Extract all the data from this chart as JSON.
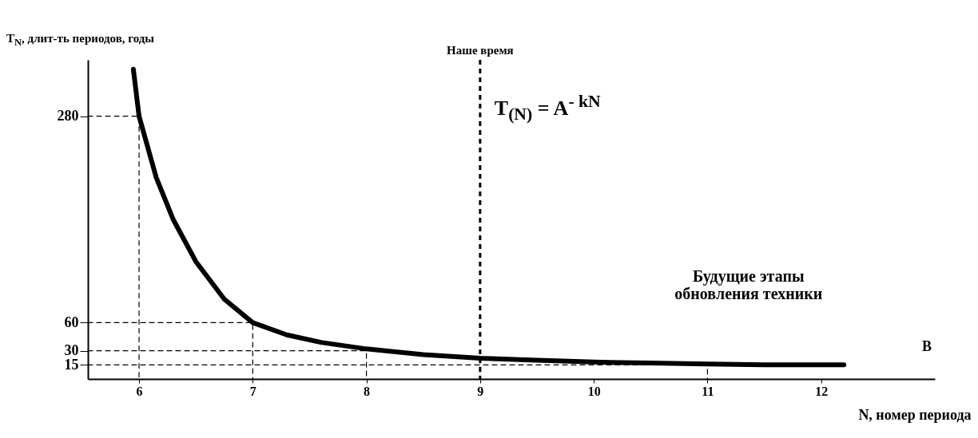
{
  "chart_data": {
    "type": "line",
    "xlabel": "N, номер периода",
    "ylabel": "T$_{N}$, длит-ть периодов, годы",
    "xlim": [
      5.55,
      13
    ],
    "xticks": [
      6,
      7,
      8,
      9,
      10,
      11,
      12
    ],
    "ylim": [
      0,
      340
    ],
    "yticks": [
      15,
      30,
      60,
      280
    ],
    "series": [
      {
        "color": "#000000",
        "line_style": "solid",
        "x": [
          5.95,
          6,
          6.15,
          6.3,
          6.5,
          6.75,
          7,
          7.3,
          7.6,
          8,
          8.5,
          9,
          9.5,
          10,
          10.5,
          11,
          11.5,
          12.2
        ],
        "values": [
          330,
          280,
          215,
          170,
          125,
          85,
          60,
          47,
          39,
          32,
          26,
          22,
          20,
          18,
          17,
          16,
          15,
          15
        ]
      },
      {
        "color": "#000000",
        "line_style": "dashed",
        "x": [
          5.55,
          6,
          6
        ],
        "values": [
          280,
          280,
          0
        ]
      },
      {
        "color": "#000000",
        "line_style": "dashed",
        "x": [
          5.55,
          7,
          7
        ],
        "values": [
          60,
          60,
          0
        ]
      },
      {
        "color": "#000000",
        "line_style": "dashed",
        "x": [
          5.55,
          8,
          8
        ],
        "values": [
          30,
          30,
          0
        ]
      },
      {
        "color": "#000000",
        "line_style": "dashed",
        "x": [
          5.55,
          11,
          11
        ],
        "values": [
          15,
          15,
          0
        ]
      },
      {
        "color": "#000000",
        "line_style": "dashed",
        "x": [
          9,
          9
        ],
        "values": [
          22,
          0
        ]
      }
    ],
    "ref_lines": [
      {
        "axis": "x",
        "value": 9,
        "label": "Наше время",
        "line_style": "dashed"
      }
    ],
    "annotations": [
      "T$_{(N)}$ = A$^{- kN}$",
      "Будущие этапы обновления техники",
      "B"
    ]
  }
}
